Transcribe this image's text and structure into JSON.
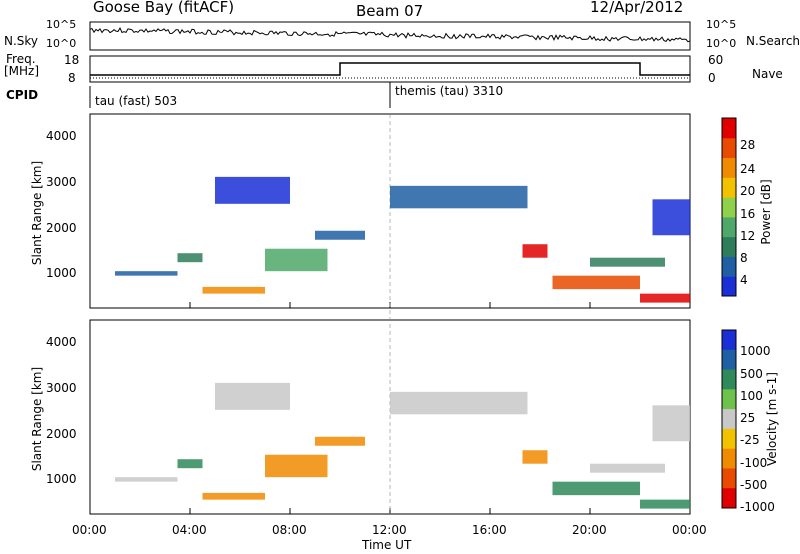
{
  "header": {
    "station": "Goose Bay (fitACF)",
    "beam": "Beam 07",
    "date": "12/Apr/2012"
  },
  "left_labels": {
    "nsky": "N.Sky",
    "freq": "Freq.",
    "mhz": "[MHz]",
    "cpid": "CPID"
  },
  "right_labels": {
    "nsearch": "N.Search",
    "nave": "Nave"
  },
  "mode_bar": {
    "mode1": "tau (fast) 503",
    "mode2": "themis (tau) 3310"
  },
  "colors": {
    "power_scale": [
      "#1a2fd6",
      "#1f5fa3",
      "#2e7d5a",
      "#4fa86a",
      "#8fd14a",
      "#f2c200",
      "#f08a00",
      "#e84a00",
      "#e00000"
    ],
    "velocity_scale": [
      "#1a2fd6",
      "#1f5fa3",
      "#2e8a5a",
      "#6cc24a",
      "#c8c8c8",
      "#f2c200",
      "#f08a00",
      "#e84a00",
      "#e00000"
    ]
  },
  "chart_data": [
    {
      "type": "line",
      "panel": "noise",
      "y_left_ticks": [
        "10^5",
        "10^0"
      ],
      "y_right_ticks": [
        "10^5",
        "10^0"
      ]
    },
    {
      "type": "line",
      "panel": "frequency / nave",
      "y_left_ticks": [
        "18",
        "8"
      ],
      "y_right_ticks": [
        "60",
        "0"
      ]
    },
    {
      "type": "heatmap",
      "panel": "power",
      "ylabel": "Slant Range [km]",
      "y_ticks": [
        "4000",
        "3000",
        "2000",
        "1000"
      ],
      "ylim": [
        180,
        4500
      ],
      "colorbar_label": "Power [dB]",
      "colorbar_ticks": [
        "28",
        "24",
        "20",
        "16",
        "12",
        "8",
        "4"
      ]
    },
    {
      "type": "heatmap",
      "panel": "velocity",
      "ylabel": "Slant Range [km]",
      "y_ticks": [
        "4000",
        "3000",
        "2000",
        "1000"
      ],
      "ylim": [
        180,
        4500
      ],
      "colorbar_label": "Velocity [m s-1]",
      "colorbar_ticks": [
        "1000",
        "500",
        "100",
        "25",
        "-25",
        "-100",
        "-500",
        "-1000"
      ]
    }
  ],
  "x_axis": {
    "ticks": [
      "00:00",
      "04:00",
      "08:00",
      "12:00",
      "16:00",
      "20:00",
      "00:00"
    ],
    "label": "Time UT"
  }
}
